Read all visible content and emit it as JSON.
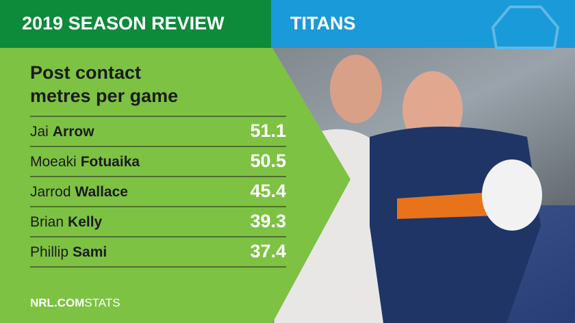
{
  "header": {
    "left": "2019 SEASON REVIEW",
    "right": "TITANS"
  },
  "title": {
    "line1": "Post contact",
    "line2": "metres per game"
  },
  "table": {
    "rows": [
      [
        "Jai",
        "Arrow",
        51.1
      ],
      [
        "Moeaki",
        "Fotuaika",
        50.5
      ],
      [
        "Jarrod",
        "Wallace",
        45.4
      ],
      [
        "Brian",
        "Kelly",
        39.3
      ],
      [
        "Phillip",
        "Sami",
        37.4
      ]
    ]
  },
  "footer": {
    "brand": "NRL.COM",
    "suffix": "STATS"
  }
}
